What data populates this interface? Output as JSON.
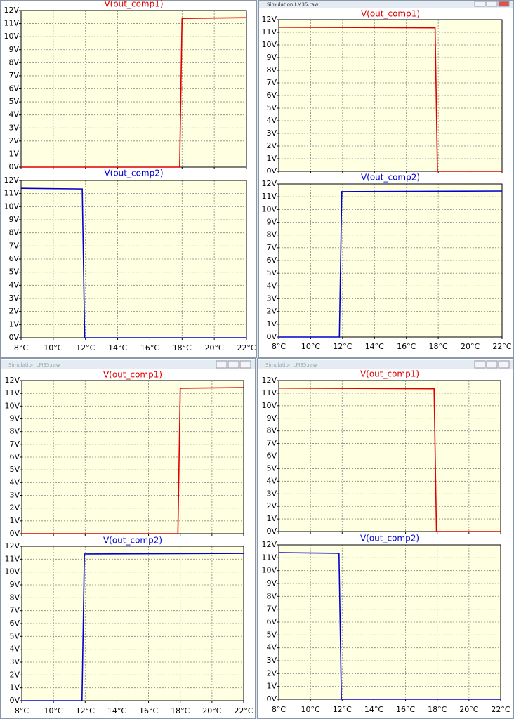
{
  "windows": [
    {
      "plots": [
        {
          "type": "line",
          "title": "V(out_comp1)",
          "color": "#e00000",
          "x": [
            8,
            17.85,
            18.0,
            22
          ],
          "values": [
            0,
            0,
            11.4,
            11.45
          ]
        },
        {
          "type": "line",
          "title": "V(out_comp2)",
          "color": "#0000d0",
          "x": [
            8,
            11.8,
            11.95,
            22
          ],
          "values": [
            11.4,
            11.35,
            0,
            0
          ]
        }
      ]
    },
    {
      "title": "Simulation LM35.raw",
      "plots": [
        {
          "type": "line",
          "title": "V(out_comp1)",
          "color": "#e00000",
          "x": [
            8,
            17.8,
            17.95,
            22
          ],
          "values": [
            11.4,
            11.35,
            0,
            0
          ]
        },
        {
          "type": "line",
          "title": "V(out_comp2)",
          "color": "#0000d0",
          "x": [
            8,
            11.8,
            11.95,
            22
          ],
          "values": [
            0,
            0,
            11.4,
            11.45
          ]
        }
      ]
    },
    {
      "title": "Simulation LM35.raw",
      "plots": [
        {
          "type": "line",
          "title": "V(out_comp1)",
          "color": "#e00000",
          "x": [
            8,
            17.85,
            18.0,
            22
          ],
          "values": [
            0,
            0,
            11.4,
            11.45
          ]
        },
        {
          "type": "line",
          "title": "V(out_comp2)",
          "color": "#0000d0",
          "x": [
            8,
            11.8,
            11.95,
            22
          ],
          "values": [
            0,
            0,
            11.4,
            11.45
          ]
        }
      ]
    },
    {
      "title": "Simulation LM35.raw",
      "plots": [
        {
          "type": "line",
          "title": "V(out_comp1)",
          "color": "#e00000",
          "x": [
            8,
            17.8,
            17.95,
            22
          ],
          "values": [
            11.4,
            11.35,
            0,
            0
          ]
        },
        {
          "type": "line",
          "title": "V(out_comp2)",
          "color": "#0000d0",
          "x": [
            8,
            11.8,
            11.95,
            22
          ],
          "values": [
            11.4,
            11.35,
            0,
            0
          ]
        }
      ]
    }
  ],
  "x_axis": {
    "xlim": [
      8,
      22
    ],
    "xticks": [
      {
        "value": 8,
        "label": "8°C"
      },
      {
        "value": 10,
        "label": "10°C"
      },
      {
        "value": 12,
        "label": "12°C"
      },
      {
        "value": 14,
        "label": "14°C"
      },
      {
        "value": 16,
        "label": "16°C"
      },
      {
        "value": 18,
        "label": "18°C"
      },
      {
        "value": 20,
        "label": "20°C"
      },
      {
        "value": 22,
        "label": "22°C"
      }
    ]
  },
  "y_axis": {
    "ylim": [
      0,
      12
    ],
    "yticks": [
      {
        "value": 0,
        "label": "0V"
      },
      {
        "value": 1,
        "label": "1V"
      },
      {
        "value": 2,
        "label": "2V"
      },
      {
        "value": 3,
        "label": "3V"
      },
      {
        "value": 4,
        "label": "4V"
      },
      {
        "value": 5,
        "label": "5V"
      },
      {
        "value": 6,
        "label": "6V"
      },
      {
        "value": 7,
        "label": "7V"
      },
      {
        "value": 8,
        "label": "8V"
      },
      {
        "value": 9,
        "label": "9V"
      },
      {
        "value": 10,
        "label": "10V"
      },
      {
        "value": 11,
        "label": "11V"
      },
      {
        "value": 12,
        "label": "12V"
      }
    ]
  }
}
